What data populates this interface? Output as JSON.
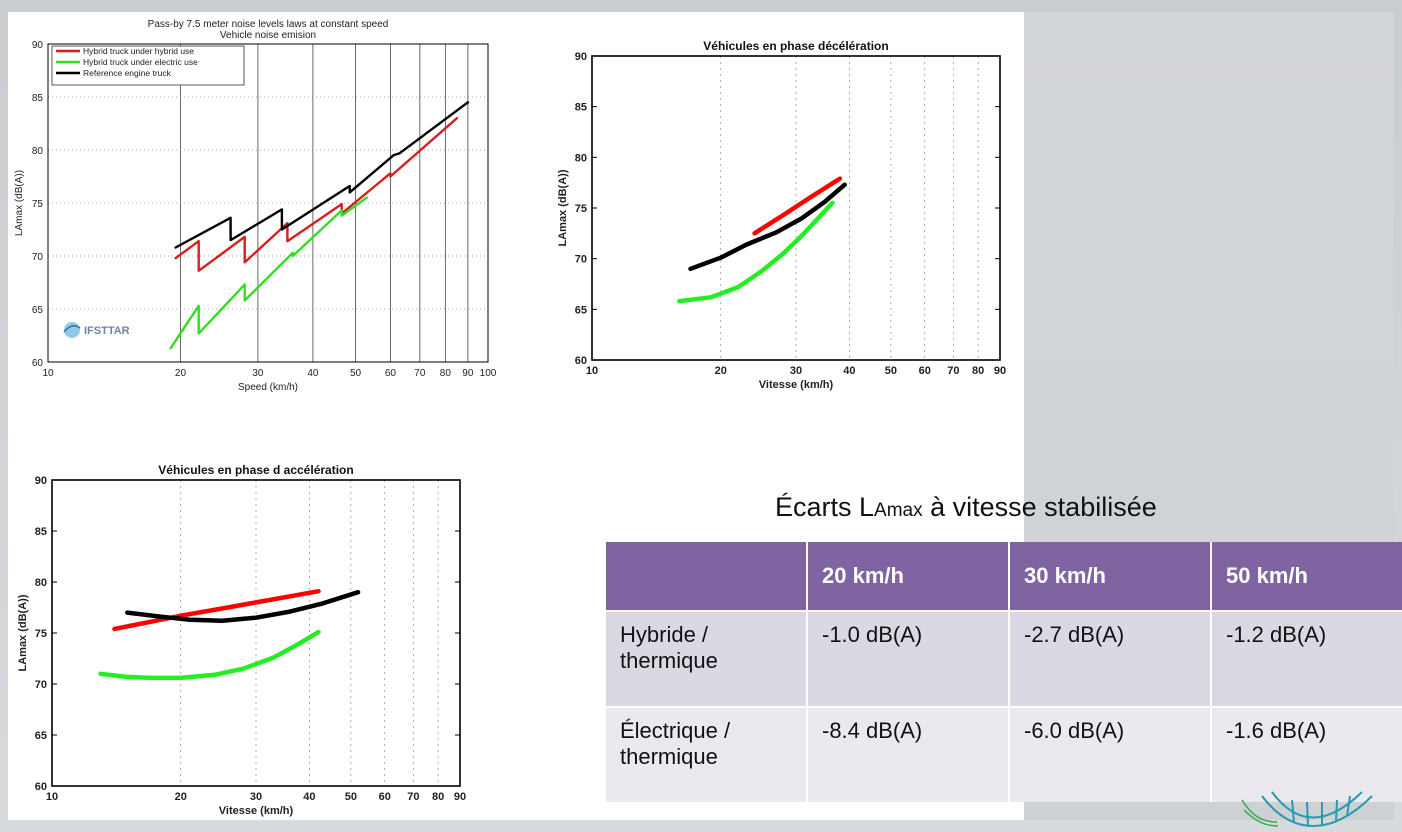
{
  "slide": {
    "table_title_main": "Écarts L",
    "table_title_sub": "Amax",
    "table_title_rest": " à vitesse stabilisée"
  },
  "table": {
    "headers": [
      "",
      "20 km/h",
      "30 km/h",
      "50 km/h"
    ],
    "rows": [
      {
        "label": "Hybride / thermique",
        "values": [
          "-1.0 dB(A)",
          "-2.7 dB(A)",
          "-1.2 dB(A)"
        ]
      },
      {
        "label": "Électrique / thermique",
        "values": [
          "-8.4 dB(A)",
          "-6.0 dB(A)",
          "-1.6 dB(A)"
        ]
      }
    ]
  },
  "chart_data": [
    {
      "type": "line",
      "title": "Pass-by 7.5 meter noise levels laws at constant speed",
      "subtitle": "Vehicle noise emision",
      "xlabel": "Speed (km/h)",
      "ylabel": "LAmax (dB(A))",
      "x_scale": "log",
      "xlim": [
        10,
        100
      ],
      "ylim": [
        60,
        90
      ],
      "x_ticks": [
        10,
        20,
        30,
        40,
        50,
        60,
        70,
        80,
        90,
        100
      ],
      "y_ticks": [
        60,
        65,
        70,
        75,
        80,
        85,
        90
      ],
      "grid": "vertical solid, horizontal dotted",
      "legend_position": "top-left",
      "watermark": "IFSTTAR",
      "series": [
        {
          "name": "Hybrid truck under hybrid use",
          "color": "#d62020",
          "x": [
            19.5,
            22,
            22,
            28,
            28,
            35,
            35,
            46.5,
            46.5,
            60,
            60,
            85
          ],
          "y": [
            69.8,
            71.4,
            68.6,
            71.8,
            69.4,
            73.1,
            71.4,
            74.9,
            74.0,
            77.8,
            77.5,
            83.0
          ]
        },
        {
          "name": "Hybrid truck under electric use",
          "color": "#33dd22",
          "x": [
            19,
            22,
            22,
            28,
            28,
            36,
            36,
            46.5,
            46.5,
            53
          ],
          "y": [
            61.3,
            65.3,
            62.7,
            67.3,
            65.8,
            70.3,
            70.0,
            74.3,
            73.8,
            75.5
          ]
        },
        {
          "name": "Reference engine truck",
          "color": "#000000",
          "x": [
            19.5,
            26,
            26,
            34,
            34,
            48.5,
            48.5,
            61,
            63,
            90
          ],
          "y": [
            70.8,
            73.6,
            71.5,
            74.4,
            72.5,
            76.6,
            76.0,
            79.5,
            79.7,
            84.5
          ]
        }
      ]
    },
    {
      "type": "line",
      "title": "Véhicules en phase décélération",
      "xlabel": "Vitesse (km/h)",
      "ylabel": "LAmax (dB(A))",
      "x_scale": "log",
      "xlim": [
        10,
        90
      ],
      "ylim": [
        60,
        90
      ],
      "x_ticks": [
        10,
        20,
        30,
        40,
        50,
        60,
        70,
        80,
        90
      ],
      "y_ticks": [
        60,
        65,
        70,
        75,
        80,
        85,
        90
      ],
      "grid": "vertical dashed",
      "series": [
        {
          "color": "#ff0000",
          "x": [
            24,
            28,
            32,
            38
          ],
          "y": [
            72.5,
            74.3,
            75.9,
            77.9
          ]
        },
        {
          "color": "#000000",
          "x": [
            17,
            20,
            23,
            27,
            31,
            35,
            39
          ],
          "y": [
            69.0,
            70.1,
            71.4,
            72.6,
            74.0,
            75.6,
            77.3
          ]
        },
        {
          "color": "#22ee22",
          "x": [
            16,
            19,
            22,
            25,
            28,
            31,
            34,
            36.5
          ],
          "y": [
            65.8,
            66.2,
            67.2,
            68.8,
            70.5,
            72.3,
            74.1,
            75.5
          ]
        }
      ]
    },
    {
      "type": "line",
      "title": "Véhicules en phase d accélération",
      "xlabel": "Vitesse (km/h)",
      "ylabel": "LAmax (dB(A))",
      "x_scale": "log",
      "xlim": [
        10,
        90
      ],
      "ylim": [
        60,
        90
      ],
      "x_ticks": [
        10,
        20,
        30,
        40,
        50,
        60,
        70,
        80,
        90
      ],
      "y_ticks": [
        60,
        65,
        70,
        75,
        80,
        85,
        90
      ],
      "grid": "vertical dashed",
      "series": [
        {
          "color": "#ff0000",
          "x": [
            14,
            17,
            20,
            25,
            30,
            35,
            42
          ],
          "y": [
            75.4,
            76.1,
            76.7,
            77.4,
            78.0,
            78.5,
            79.1
          ]
        },
        {
          "color": "#000000",
          "x": [
            15,
            18,
            21,
            25,
            30,
            36,
            43,
            52
          ],
          "y": [
            77.0,
            76.6,
            76.3,
            76.2,
            76.5,
            77.1,
            77.9,
            79.0
          ]
        },
        {
          "color": "#22ee22",
          "x": [
            13,
            15,
            17,
            20,
            24,
            28,
            33,
            38,
            42
          ],
          "y": [
            71.0,
            70.7,
            70.6,
            70.6,
            70.9,
            71.5,
            72.6,
            74.0,
            75.1
          ]
        }
      ]
    }
  ]
}
